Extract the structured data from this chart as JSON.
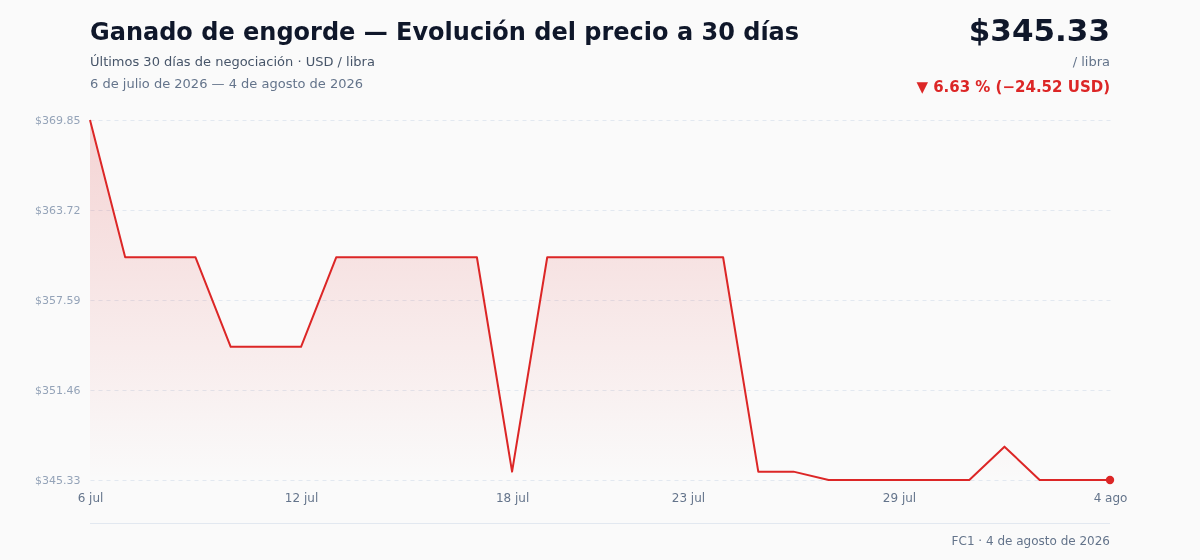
{
  "chart_data": {
    "type": "area",
    "title": "Ganado de engorde — Evolución del precio a 30 días",
    "subtitle": "Últimos 30 días de negociación · USD / libra",
    "annotations": [
      "6 de julio de 2026 — 4 de agosto de 2026",
      "$345.33",
      "/ libra",
      "▼ 6.63 % (−24.52 USD)",
      "FC1 · 4 de agosto de 2026"
    ],
    "x": [
      "2026-07-06",
      "2026-07-07",
      "2026-07-08",
      "2026-07-09",
      "2026-07-10",
      "2026-07-11",
      "2026-07-12",
      "2026-07-13",
      "2026-07-14",
      "2026-07-15",
      "2026-07-16",
      "2026-07-17",
      "2026-07-18",
      "2026-07-19",
      "2026-07-20",
      "2026-07-21",
      "2026-07-22",
      "2026-07-23",
      "2026-07-24",
      "2026-07-25",
      "2026-07-26",
      "2026-07-27",
      "2026-07-28",
      "2026-07-29",
      "2026-07-30",
      "2026-07-31",
      "2026-08-01",
      "2026-08-02",
      "2026-08-03",
      "2026-08-04"
    ],
    "series": [
      {
        "color": "#dc2626",
        "values": [
          369.85,
          360.5,
          360.5,
          360.5,
          354.4,
          354.4,
          354.4,
          360.5,
          360.5,
          360.5,
          360.5,
          360.5,
          345.9,
          360.5,
          360.5,
          360.5,
          360.5,
          360.5,
          360.5,
          345.9,
          345.9,
          345.33,
          345.33,
          345.33,
          345.33,
          345.33,
          347.6,
          345.33,
          345.33,
          345.33
        ]
      },
      {
        "type": "scatter",
        "color": "#dc2626",
        "x": [
          "2026-08-04"
        ],
        "values": [
          345.33
        ]
      }
    ],
    "xlim": [
      "2026-07-06",
      "2026-08-04"
    ],
    "xticks": [
      {
        "value": "2026-07-06",
        "label": "6 jul"
      },
      {
        "value": "2026-07-12",
        "label": "12 jul"
      },
      {
        "value": "2026-07-18",
        "label": "18 jul"
      },
      {
        "value": "2026-07-23",
        "label": "23 jul"
      },
      {
        "value": "2026-07-29",
        "label": "29 jul"
      },
      {
        "value": "2026-08-04",
        "label": "4 ago"
      }
    ],
    "ylim": [
      345.33,
      369.85
    ],
    "yticks": [
      {
        "value": 345.33,
        "label": "$345.33"
      },
      {
        "value": 351.46,
        "label": "$351.46"
      },
      {
        "value": 357.59,
        "label": "$357.59"
      },
      {
        "value": 363.72,
        "label": "$363.72"
      },
      {
        "value": 369.85,
        "label": "$369.85"
      }
    ],
    "grid": "y"
  }
}
